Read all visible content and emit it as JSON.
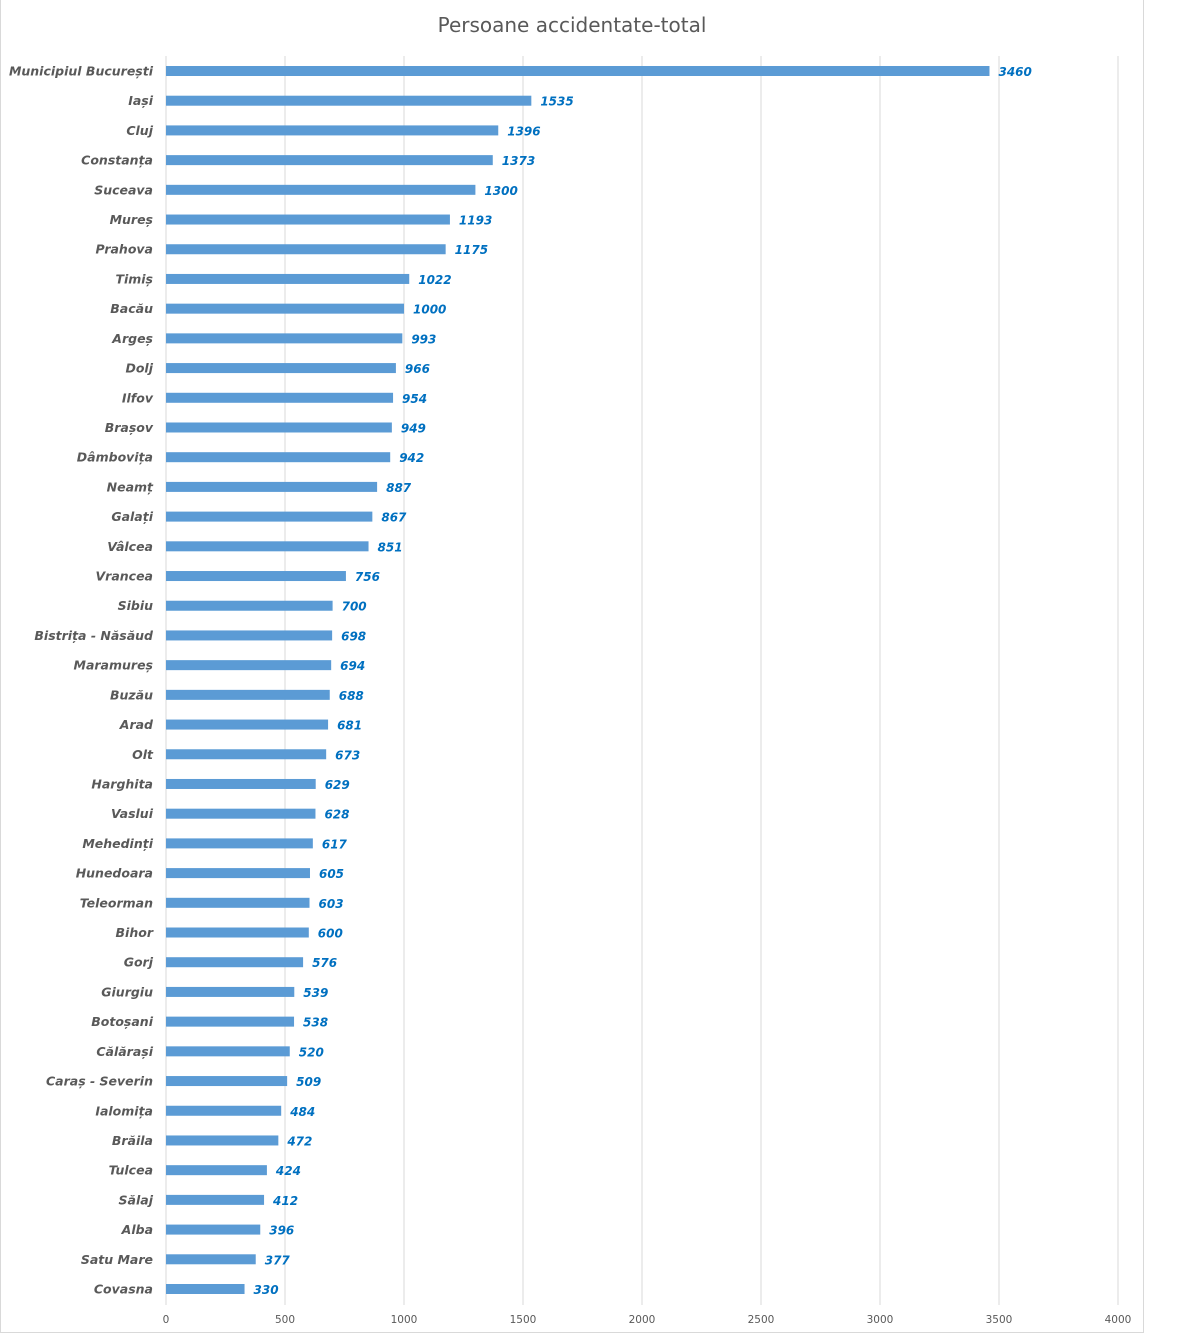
{
  "chart_data": {
    "type": "bar",
    "orientation": "horizontal",
    "title": "Persoane accidentate-total",
    "xlabel": "",
    "ylabel": "",
    "xlim": [
      0,
      4000
    ],
    "x_ticks": [
      "0",
      "500",
      "1000",
      "1500",
      "2000",
      "2500",
      "3000",
      "3500",
      "4000"
    ],
    "grid": "vertical gridlines on",
    "legend": "none",
    "bar_color": "#5b9bd5",
    "label_color": "#0070c0",
    "categories": [
      "Municipiul București",
      "Iași",
      "Cluj",
      "Constanța",
      "Suceava",
      "Mureș",
      "Prahova",
      "Timiș",
      "Bacău",
      "Argeș",
      "Dolj",
      "Ilfov",
      "Brașov",
      "Dâmbovița",
      "Neamț",
      "Galați",
      "Vâlcea",
      "Vrancea",
      "Sibiu",
      "Bistrița - Năsăud",
      "Maramureș",
      "Buzău",
      "Arad",
      "Olt",
      "Harghita",
      "Vaslui",
      "Mehedinți",
      "Hunedoara",
      "Teleorman",
      "Bihor",
      "Gorj",
      "Giurgiu",
      "Botoșani",
      "Călărași",
      "Caraș - Severin",
      "Ialomița",
      "Brăila",
      "Tulcea",
      "Sălaj",
      "Alba",
      "Satu  Mare",
      "Covasna"
    ],
    "values": [
      3460,
      1535,
      1396,
      1373,
      1300,
      1193,
      1175,
      1022,
      1000,
      993,
      966,
      954,
      949,
      942,
      887,
      867,
      851,
      756,
      700,
      698,
      694,
      688,
      681,
      673,
      629,
      628,
      617,
      605,
      603,
      600,
      576,
      539,
      538,
      520,
      509,
      484,
      472,
      424,
      412,
      396,
      377,
      330
    ]
  }
}
